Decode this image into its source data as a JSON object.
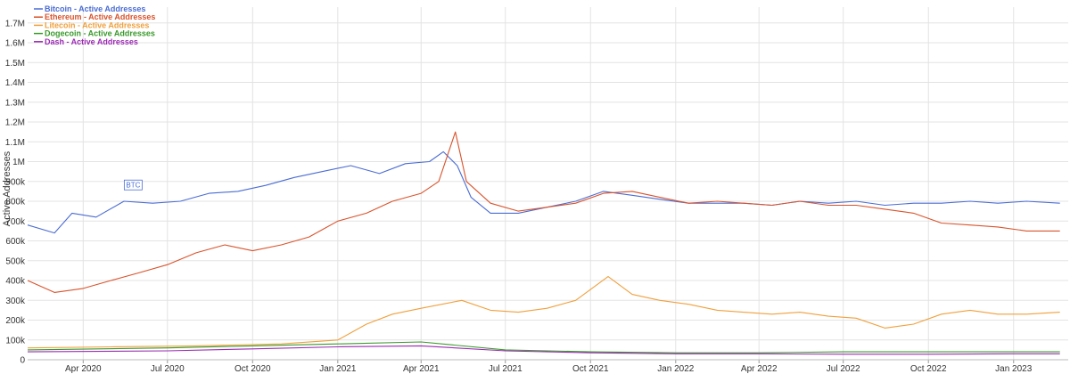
{
  "chart_data": {
    "type": "line",
    "ylabel": "Active Addresses",
    "ylim": [
      0,
      1780000
    ],
    "y_ticks": [
      0,
      100000,
      200000,
      300000,
      400000,
      500000,
      600000,
      700000,
      800000,
      900000,
      1000000,
      1100000,
      1200000,
      1300000,
      1400000,
      1500000,
      1600000,
      1700000
    ],
    "y_tick_labels": [
      "0",
      "100k",
      "200k",
      "300k",
      "400k",
      "500k",
      "600k",
      "700k",
      "800k",
      "900k",
      "1M",
      "1.1M",
      "1.2M",
      "1.3M",
      "1.4M",
      "1.5M",
      "1.6M",
      "1.7M"
    ],
    "xlim": [
      "2020-02-01",
      "2023-03-01"
    ],
    "x_ticks": [
      "2020-04-01",
      "2020-07-01",
      "2020-10-01",
      "2021-01-01",
      "2021-04-01",
      "2021-07-01",
      "2021-10-01",
      "2022-01-01",
      "2022-04-01",
      "2022-07-01",
      "2022-10-01",
      "2023-01-01"
    ],
    "x_tick_labels": [
      "Apr 2020",
      "Jul 2020",
      "Oct 2020",
      "Jan 2021",
      "Apr 2021",
      "Jul 2021",
      "Oct 2021",
      "Jan 2022",
      "Apr 2022",
      "Jul 2022",
      "Oct 2022",
      "Jan 2023"
    ],
    "grid": true,
    "legend_position": "top-left",
    "annotations": [
      {
        "text": "BTC",
        "x": "2020-05-25",
        "y": 880000,
        "color": "#4a6cd4"
      }
    ],
    "series": [
      {
        "name": "Bitcoin - Active Addresses",
        "color": "#4a6cd4",
        "points": [
          [
            "2020-02-01",
            680000
          ],
          [
            "2020-03-01",
            640000
          ],
          [
            "2020-03-20",
            740000
          ],
          [
            "2020-04-15",
            720000
          ],
          [
            "2020-05-15",
            800000
          ],
          [
            "2020-06-15",
            790000
          ],
          [
            "2020-07-15",
            800000
          ],
          [
            "2020-08-15",
            840000
          ],
          [
            "2020-09-15",
            850000
          ],
          [
            "2020-10-15",
            880000
          ],
          [
            "2020-11-15",
            920000
          ],
          [
            "2020-12-15",
            950000
          ],
          [
            "2021-01-15",
            980000
          ],
          [
            "2021-02-15",
            940000
          ],
          [
            "2021-03-15",
            990000
          ],
          [
            "2021-04-10",
            1000000
          ],
          [
            "2021-04-25",
            1050000
          ],
          [
            "2021-05-10",
            980000
          ],
          [
            "2021-05-25",
            820000
          ],
          [
            "2021-06-15",
            740000
          ],
          [
            "2021-07-15",
            740000
          ],
          [
            "2021-08-15",
            770000
          ],
          [
            "2021-09-15",
            800000
          ],
          [
            "2021-10-15",
            850000
          ],
          [
            "2021-11-15",
            830000
          ],
          [
            "2021-12-15",
            810000
          ],
          [
            "2022-01-15",
            790000
          ],
          [
            "2022-02-15",
            790000
          ],
          [
            "2022-03-15",
            790000
          ],
          [
            "2022-04-15",
            780000
          ],
          [
            "2022-05-15",
            800000
          ],
          [
            "2022-06-15",
            790000
          ],
          [
            "2022-07-15",
            800000
          ],
          [
            "2022-08-15",
            780000
          ],
          [
            "2022-09-15",
            790000
          ],
          [
            "2022-10-15",
            790000
          ],
          [
            "2022-11-15",
            800000
          ],
          [
            "2022-12-15",
            790000
          ],
          [
            "2023-01-15",
            800000
          ],
          [
            "2023-02-20",
            790000
          ]
        ]
      },
      {
        "name": "Ethereum - Active Addresses",
        "color": "#d9532c",
        "points": [
          [
            "2020-02-01",
            400000
          ],
          [
            "2020-03-01",
            340000
          ],
          [
            "2020-04-01",
            360000
          ],
          [
            "2020-05-01",
            400000
          ],
          [
            "2020-06-01",
            440000
          ],
          [
            "2020-07-01",
            480000
          ],
          [
            "2020-08-01",
            540000
          ],
          [
            "2020-09-01",
            580000
          ],
          [
            "2020-10-01",
            550000
          ],
          [
            "2020-11-01",
            580000
          ],
          [
            "2020-12-01",
            620000
          ],
          [
            "2021-01-01",
            700000
          ],
          [
            "2021-02-01",
            740000
          ],
          [
            "2021-03-01",
            800000
          ],
          [
            "2021-04-01",
            840000
          ],
          [
            "2021-04-20",
            900000
          ],
          [
            "2021-05-08",
            1150000
          ],
          [
            "2021-05-20",
            900000
          ],
          [
            "2021-06-15",
            790000
          ],
          [
            "2021-07-15",
            750000
          ],
          [
            "2021-08-15",
            770000
          ],
          [
            "2021-09-15",
            790000
          ],
          [
            "2021-10-15",
            840000
          ],
          [
            "2021-11-15",
            850000
          ],
          [
            "2021-12-15",
            820000
          ],
          [
            "2022-01-15",
            790000
          ],
          [
            "2022-02-15",
            800000
          ],
          [
            "2022-03-15",
            790000
          ],
          [
            "2022-04-15",
            780000
          ],
          [
            "2022-05-15",
            800000
          ],
          [
            "2022-06-15",
            780000
          ],
          [
            "2022-07-15",
            780000
          ],
          [
            "2022-08-15",
            760000
          ],
          [
            "2022-09-15",
            740000
          ],
          [
            "2022-10-15",
            690000
          ],
          [
            "2022-11-15",
            680000
          ],
          [
            "2022-12-15",
            670000
          ],
          [
            "2023-01-15",
            650000
          ],
          [
            "2023-02-20",
            650000
          ]
        ]
      },
      {
        "name": "Litecoin - Active Addresses",
        "color": "#f0a03c",
        "points": [
          [
            "2020-02-01",
            60000
          ],
          [
            "2020-05-01",
            65000
          ],
          [
            "2020-08-01",
            70000
          ],
          [
            "2020-11-01",
            80000
          ],
          [
            "2021-01-01",
            100000
          ],
          [
            "2021-02-01",
            180000
          ],
          [
            "2021-03-01",
            230000
          ],
          [
            "2021-04-01",
            260000
          ],
          [
            "2021-05-15",
            300000
          ],
          [
            "2021-06-15",
            250000
          ],
          [
            "2021-07-15",
            240000
          ],
          [
            "2021-08-15",
            260000
          ],
          [
            "2021-09-15",
            300000
          ],
          [
            "2021-10-20",
            420000
          ],
          [
            "2021-11-15",
            330000
          ],
          [
            "2021-12-15",
            300000
          ],
          [
            "2022-01-15",
            280000
          ],
          [
            "2022-02-15",
            250000
          ],
          [
            "2022-03-15",
            240000
          ],
          [
            "2022-04-15",
            230000
          ],
          [
            "2022-05-15",
            240000
          ],
          [
            "2022-06-15",
            220000
          ],
          [
            "2022-07-15",
            210000
          ],
          [
            "2022-08-15",
            160000
          ],
          [
            "2022-09-15",
            180000
          ],
          [
            "2022-10-15",
            230000
          ],
          [
            "2022-11-15",
            250000
          ],
          [
            "2022-12-15",
            230000
          ],
          [
            "2023-01-15",
            230000
          ],
          [
            "2023-02-20",
            240000
          ]
        ]
      },
      {
        "name": "Dogecoin - Active Addresses",
        "color": "#3a9a2c",
        "points": [
          [
            "2020-02-01",
            50000
          ],
          [
            "2020-07-01",
            60000
          ],
          [
            "2020-10-01",
            70000
          ],
          [
            "2021-01-01",
            80000
          ],
          [
            "2021-04-01",
            90000
          ],
          [
            "2021-07-01",
            50000
          ],
          [
            "2021-10-01",
            40000
          ],
          [
            "2022-01-01",
            35000
          ],
          [
            "2022-04-01",
            35000
          ],
          [
            "2022-07-01",
            40000
          ],
          [
            "2022-10-01",
            40000
          ],
          [
            "2023-01-01",
            40000
          ],
          [
            "2023-02-20",
            40000
          ]
        ]
      },
      {
        "name": "Dash - Active Addresses",
        "color": "#9b2ab3",
        "points": [
          [
            "2020-02-01",
            40000
          ],
          [
            "2020-07-01",
            45000
          ],
          [
            "2020-10-01",
            55000
          ],
          [
            "2021-01-01",
            65000
          ],
          [
            "2021-04-01",
            70000
          ],
          [
            "2021-07-01",
            45000
          ],
          [
            "2021-10-01",
            35000
          ],
          [
            "2022-01-01",
            30000
          ],
          [
            "2022-04-01",
            30000
          ],
          [
            "2022-07-01",
            28000
          ],
          [
            "2022-10-01",
            28000
          ],
          [
            "2023-01-01",
            30000
          ],
          [
            "2023-02-20",
            30000
          ]
        ]
      }
    ]
  }
}
